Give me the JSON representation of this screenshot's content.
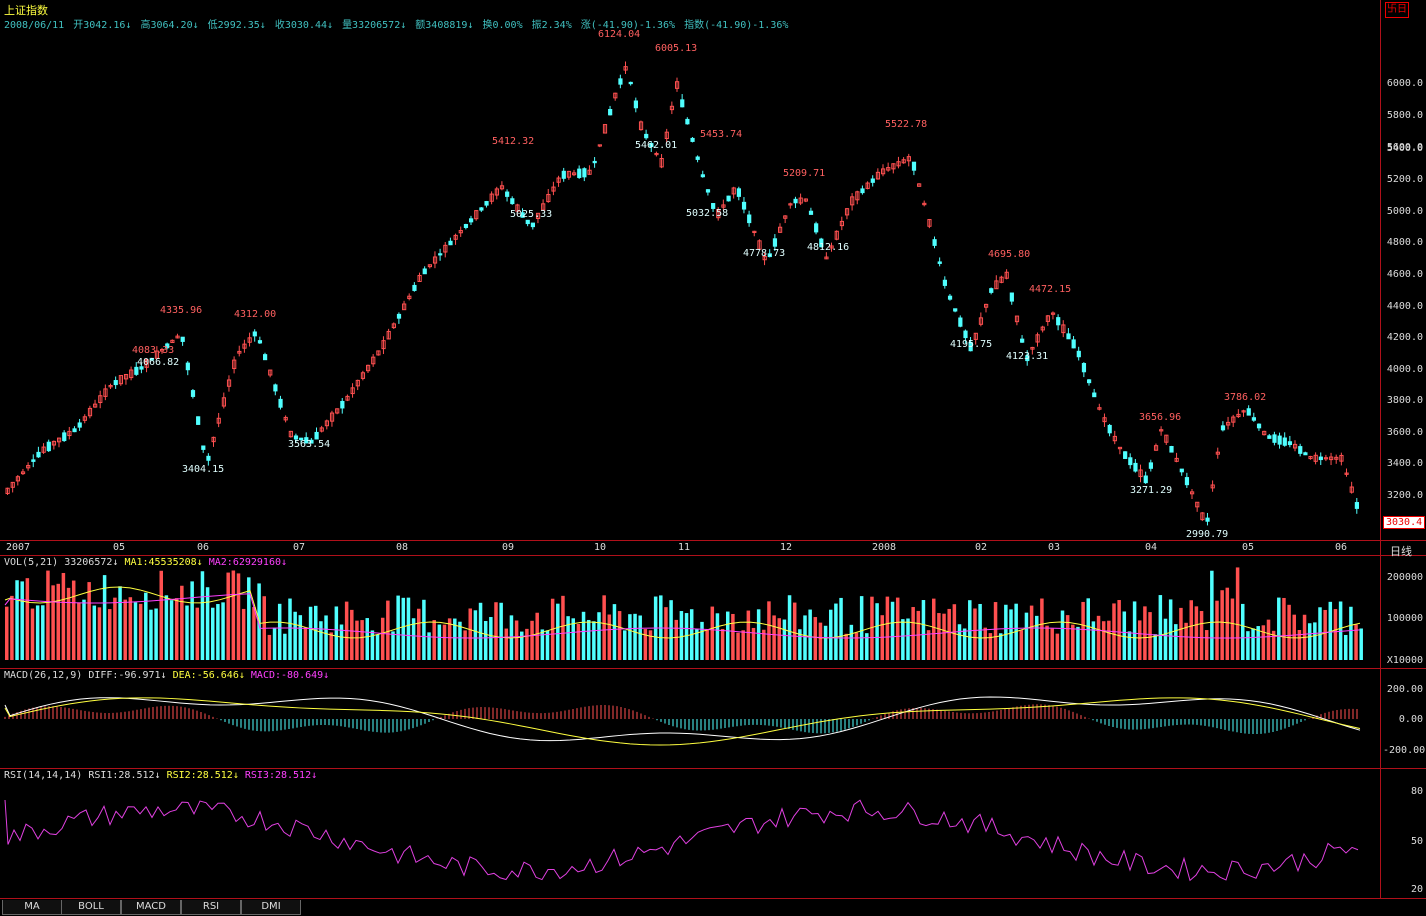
{
  "title": "上证指数",
  "infobar": {
    "date": "2008/06/11",
    "open": "开3042.16↓",
    "high": "高3064.20↓",
    "low": "低2992.35↓",
    "close": "收3030.44↓",
    "volume": "量33206572↓",
    "amount": "额3408819↓",
    "turnover": "换0.00%",
    "amplitude": "振2.34%",
    "change": "涨(-41.90)-1.36%",
    "index_change": "指数(-41.90)-1.36%"
  },
  "last_price_label": "3030.4",
  "period_label": "日线",
  "logo_icon": "卐日",
  "price_axis": [
    "6000.0",
    "5800.0",
    "5600.0",
    "5400.0",
    "5200.0",
    "5000.0",
    "4800.0",
    "4600.0",
    "4400.0",
    "4200.0",
    "4000.0",
    "3800.0",
    "3600.0",
    "3400.0",
    "3200.0"
  ],
  "month_axis": [
    "2007",
    "05",
    "06",
    "07",
    "08",
    "09",
    "10",
    "11",
    "12",
    "2008",
    "02",
    "03",
    "04",
    "05",
    "06"
  ],
  "high_labels": [
    "6124.04",
    "6005.13",
    "5412.32",
    "5453.74",
    "5522.78",
    "5209.71",
    "4695.80",
    "4472.15",
    "4335.96",
    "4312.00",
    "4083.33",
    "3786.02",
    "3656.96"
  ],
  "low_labels": [
    "5462.01",
    "5025.33",
    "5032.58",
    "4778.73",
    "4812.16",
    "4195.75",
    "4123.31",
    "4066.82",
    "3404.15",
    "3563.54",
    "3271.29",
    "2990.79"
  ],
  "vol": {
    "header_name": "VOL(5,21)",
    "value": "33206572↓",
    "ma1": "MA1:45535208↓",
    "ma2": "MA2:62929160↓",
    "axis": [
      "200000",
      "100000",
      "X10000"
    ]
  },
  "macd": {
    "header_name": "MACD(26,12,9)",
    "diff": "DIFF:-96.971↓",
    "dea": "DEA:-56.646↓",
    "macd": "MACD:-80.649↓",
    "axis": [
      "200.00",
      "0.00",
      "-200.00"
    ]
  },
  "rsi": {
    "header_name": "RSI(14,14,14)",
    "rsi1": "RSI1:28.512↓",
    "rsi2": "RSI2:28.512↓",
    "rsi3": "RSI3:28.512↓",
    "axis": [
      "80",
      "50",
      "20"
    ]
  },
  "tabs": [
    "MA",
    "BOLL",
    "MACD",
    "RSI",
    "DMI"
  ],
  "colors": {
    "up": "#ff5050",
    "down": "#50ffff",
    "border": "#b0101a",
    "ma1": "#ffff40",
    "ma2": "#ff40ff",
    "rsi": "#e040e0"
  }
}
